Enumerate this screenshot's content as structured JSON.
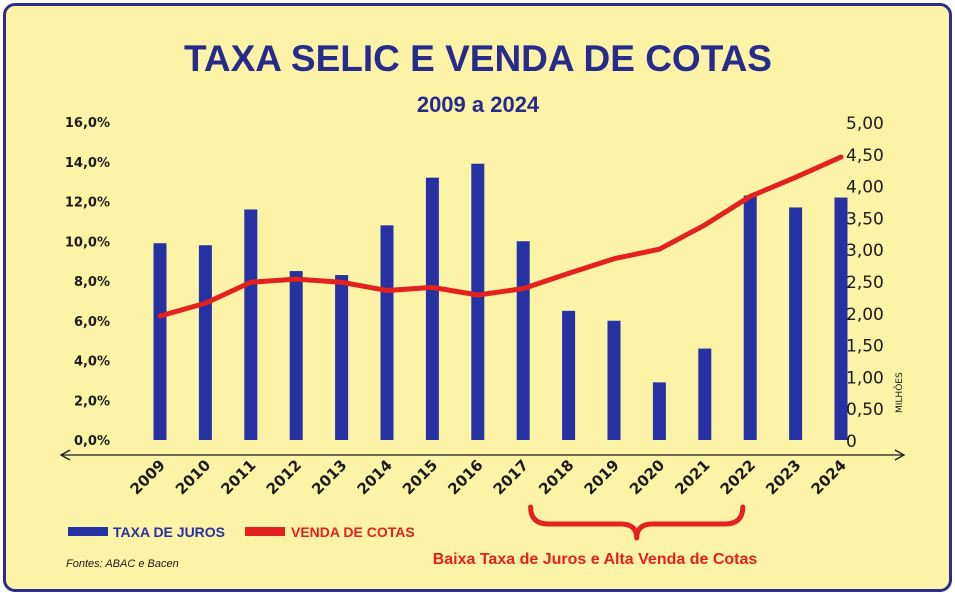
{
  "chart_data": {
    "type": "bar",
    "title": "TAXA SELIC E VENDA DE COTAS",
    "subtitle": "2009 a 2024",
    "categories": [
      "2009",
      "2010",
      "2011",
      "2012",
      "2013",
      "2014",
      "2015",
      "2016",
      "2017",
      "2018",
      "2019",
      "2020",
      "2021",
      "2022",
      "2023",
      "2024"
    ],
    "series": [
      {
        "name": "TAXA DE JUROS",
        "kind": "bar",
        "axis": "left",
        "color": "#2631a3",
        "values": [
          9.9,
          9.8,
          11.6,
          8.5,
          8.3,
          10.8,
          13.2,
          13.9,
          10.0,
          6.5,
          6.0,
          2.9,
          4.6,
          12.3,
          11.7,
          12.2
        ]
      },
      {
        "name": "VENDA DE COTAS",
        "kind": "line",
        "axis": "right",
        "color": "#e3211f",
        "values": [
          1.95,
          2.15,
          2.48,
          2.53,
          2.48,
          2.35,
          2.4,
          2.28,
          2.38,
          2.62,
          2.85,
          3.0,
          3.38,
          3.83,
          4.13,
          4.45
        ]
      }
    ],
    "y_left": {
      "ylim": [
        0,
        16
      ],
      "ticks": [
        "0,0%",
        "2,0%",
        "4,0%",
        "6,0%",
        "8,0%",
        "10,0%",
        "12,0%",
        "14,0%",
        "16,0%"
      ],
      "grid": false
    },
    "y_right": {
      "ylim": [
        0,
        5
      ],
      "ticks": [
        "0",
        "0,50",
        "1,00",
        "1,50",
        "2,00",
        "2,50",
        "3,00",
        "3,50",
        "4,00",
        "4,50",
        "5,00"
      ],
      "label": "MILHÕES"
    },
    "legend_placement": "bottom-left",
    "annotation": {
      "text": "Baixa Taxa de Juros e Alta Venda de Cotas",
      "range": [
        "2018",
        "2021"
      ],
      "color": "#e3211f"
    },
    "source": "Fontes: ABAC e Bacen"
  }
}
